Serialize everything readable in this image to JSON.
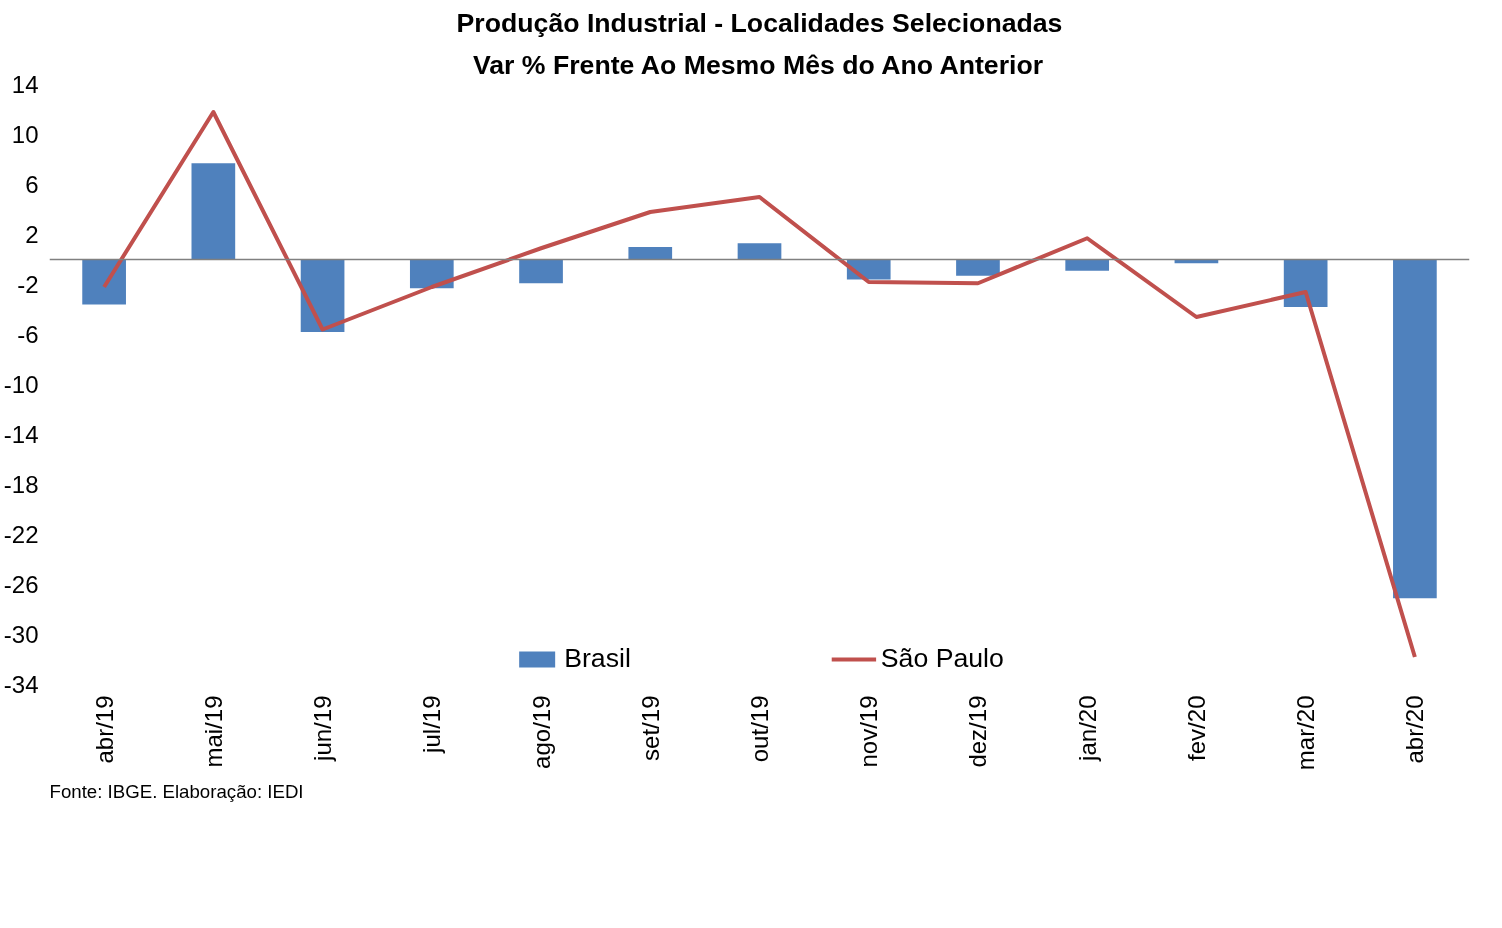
{
  "chart_data": {
    "type": "bar",
    "title": "Produção Industrial - Localidades Selecionadas",
    "subtitle": "Var % Frente Ao Mesmo Mês do Ano Anterior",
    "categories": [
      "abr/19",
      "mai/19",
      "jun/19",
      "jul/19",
      "ago/19",
      "set/19",
      "out/19",
      "nov/19",
      "dez/19",
      "jan/20",
      "fev/20",
      "mar/20",
      "abr/20"
    ],
    "series": [
      {
        "name": "Brasil",
        "color": "#4f81bd",
        "values": [
          -3.6,
          7.7,
          -5.8,
          -2.3,
          -1.9,
          1.0,
          1.3,
          -1.6,
          -1.3,
          -0.9,
          -0.3,
          -3.8,
          -27.1
        ]
      },
      {
        "name": "São Paulo",
        "type": "line",
        "color": "#c0504d",
        "values": [
          -2.2,
          11.8,
          -5.6,
          -2.2,
          0.9,
          3.8,
          5.0,
          -1.8,
          -1.9,
          1.7,
          -4.6,
          -2.6,
          -31.8
        ]
      }
    ],
    "ylim": [
      -34,
      14
    ],
    "yticks": [
      14,
      10,
      6,
      2,
      -2,
      -6,
      -10,
      -14,
      -18,
      -22,
      -26,
      -30,
      -34
    ],
    "ref_lines": [
      {
        "axis": "y",
        "value": 0,
        "color": "#808080"
      }
    ],
    "grid": false,
    "legend": "bottom",
    "marker": "none",
    "line_style": "solid",
    "annotations": [
      "Fonte: IBGE. Elaboração: IEDI"
    ]
  }
}
